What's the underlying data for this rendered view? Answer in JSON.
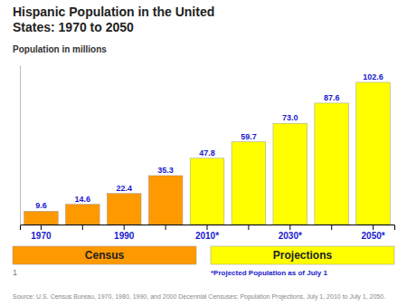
{
  "chart_data": {
    "type": "bar",
    "title": "Hispanic Population in the United\nStates: 1970 to 2050",
    "y_label": "Population  in millions",
    "categories": [
      "1970",
      null,
      "1990",
      null,
      "2010*",
      null,
      "2030*",
      null,
      "2050*"
    ],
    "series": [
      {
        "name": "Census",
        "color": "#FF9900",
        "values": [
          9.6,
          14.6,
          22.4,
          35.3,
          null,
          null,
          null,
          null,
          null
        ],
        "value_labels": [
          "9.6",
          "14.6",
          "22.4",
          "35.3",
          null,
          null,
          null,
          null,
          null
        ]
      },
      {
        "name": "Projections",
        "color": "#FFFF00",
        "values": [
          null,
          null,
          null,
          null,
          47.8,
          59.7,
          73.0,
          87.6,
          102.6
        ],
        "value_labels": [
          null,
          null,
          null,
          null,
          "47.8",
          "59.7",
          "73.0",
          "87.6",
          "102.6"
        ]
      }
    ],
    "ylim": [
      0,
      115
    ],
    "data_labels": true,
    "tick_labels": "x",
    "legend": "bottom",
    "annotations": [
      "*Projected Population as of July 1",
      "1",
      "Source: U.S. Census Bureau, 1970, 1980, 1990, and 2000 Decennial Censuses; Population Projections, July 1, 2010 to July 1, 2050."
    ]
  }
}
